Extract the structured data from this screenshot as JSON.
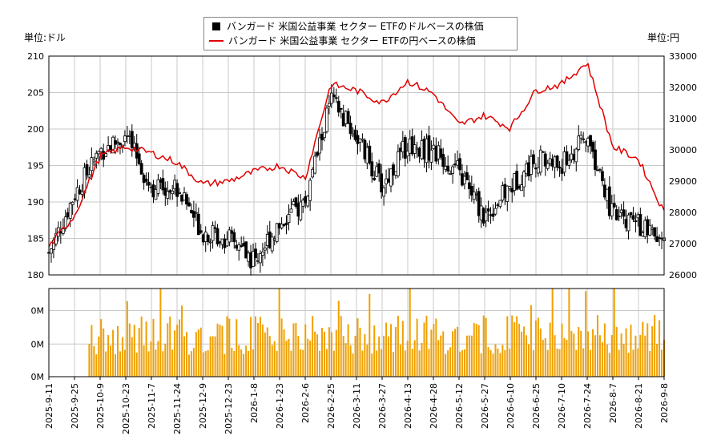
{
  "legend": {
    "dollar_series": "バンガード 米国公益事業 セクター ETFのドルベースの株価",
    "yen_series": "バンガード 米国公益事業 セクター ETFの円ベースの株価"
  },
  "units": {
    "left": "単位:ドル",
    "right": "単位:円"
  },
  "colors": {
    "candle": "#000000",
    "yen_line": "#e00000",
    "volume": "#f0a000",
    "grid": "#c8c8c8"
  },
  "chart_data": [
    {
      "type": "candlestick",
      "series": [
        {
          "name": "バンガード 米国公益事業 セクター ETFのドルベースの株価"
        }
      ],
      "x": [
        "2025-9-11",
        "2025-9-25",
        "2025-10-9",
        "2025-10-23",
        "2025-11-7",
        "2025-11-24",
        "2025-12-9",
        "2025-12-23",
        "2026-1-8",
        "2026-1-23",
        "2026-2-6",
        "2026-2-25",
        "2026-3-11",
        "2026-3-27",
        "2026-4-13",
        "2026-4-28",
        "2026-5-12",
        "2026-5-27",
        "2026-6-10",
        "2026-6-25",
        "2026-7-10",
        "2026-7-24",
        "2026-8-7",
        "2026-8-21",
        "2026-9-8"
      ],
      "close_values": [
        183,
        191,
        197,
        199,
        192,
        192,
        186,
        185,
        182,
        187,
        190,
        204,
        199,
        192,
        198,
        197,
        194,
        188,
        192,
        196,
        195,
        199,
        188,
        187,
        184
      ],
      "ylim": [
        180,
        210
      ],
      "yticks": [
        180,
        185,
        190,
        195,
        200,
        205,
        210
      ]
    },
    {
      "type": "line",
      "series": [
        {
          "name": "バンガード 米国公益事業 セクター ETFの円ベースの株価"
        }
      ],
      "x": [
        "2025-9-11",
        "2025-9-25",
        "2025-10-9",
        "2025-10-23",
        "2025-11-7",
        "2025-11-24",
        "2025-12-9",
        "2025-12-23",
        "2026-1-8",
        "2026-1-23",
        "2026-2-6",
        "2026-2-25",
        "2026-3-11",
        "2026-3-27",
        "2026-4-13",
        "2026-4-28",
        "2026-5-12",
        "2026-5-27",
        "2026-6-10",
        "2026-6-25",
        "2026-7-10",
        "2026-7-24",
        "2026-8-7",
        "2026-8-21",
        "2026-9-8"
      ],
      "values": [
        26900,
        27900,
        29800,
        30100,
        29900,
        29600,
        28900,
        29000,
        29300,
        29500,
        29100,
        32100,
        31900,
        31500,
        32200,
        31800,
        30800,
        31100,
        30700,
        31900,
        32100,
        32800,
        30100,
        29700,
        28000
      ],
      "ylim": [
        26000,
        33000
      ],
      "yticks": [
        26000,
        27000,
        28000,
        29000,
        30000,
        31000,
        32000,
        33000
      ]
    },
    {
      "type": "bar",
      "series": [
        {
          "name": "volume"
        }
      ],
      "x": [
        "2025-9-11",
        "2025-9-25",
        "2025-10-9",
        "2025-10-23",
        "2025-11-7",
        "2025-11-24",
        "2025-12-9",
        "2025-12-23",
        "2026-1-8",
        "2026-1-23",
        "2026-2-6",
        "2026-2-25",
        "2026-3-11",
        "2026-3-27",
        "2026-4-13",
        "2026-4-28",
        "2026-5-12",
        "2026-5-27",
        "2026-6-10",
        "2026-6-25",
        "2026-7-10",
        "2026-7-24",
        "2026-8-7",
        "2026-8-21",
        "2026-9-8"
      ],
      "yticks": [
        "0M",
        "0M",
        "0M"
      ]
    }
  ],
  "dates": [
    "2025-9-11",
    "2025-9-25",
    "2025-10-9",
    "2025-10-23",
    "2025-11-7",
    "2025-11-24",
    "2025-12-9",
    "2025-12-23",
    "2026-1-8",
    "2026-1-23",
    "2026-2-6",
    "2026-2-25",
    "2026-3-11",
    "2026-3-27",
    "2026-4-13",
    "2026-4-28",
    "2026-5-12",
    "2026-5-27",
    "2026-6-10",
    "2026-6-25",
    "2026-7-10",
    "2026-7-24",
    "2026-8-7",
    "2026-8-21",
    "2026-9-8"
  ]
}
